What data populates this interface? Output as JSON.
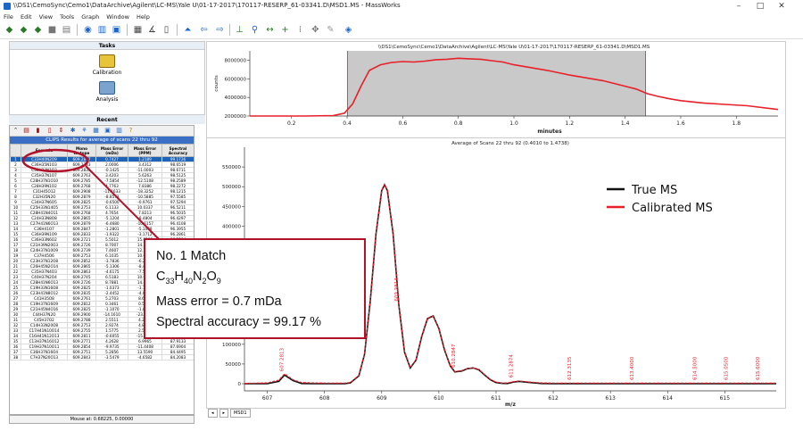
{
  "window": {
    "title": "\\\\DS1\\CemoSync\\Cemo1\\DataArchive\\Agilent\\LC-MS\\Yale U\\01-17-2017\\170117-RESERP_61-03341.D\\MSD1.MS - MassWorks",
    "min_glyph": "–",
    "max_glyph": "□",
    "close_glyph": "✕"
  },
  "menu": [
    "File",
    "Edit",
    "View",
    "Tools",
    "Graph",
    "Window",
    "Help"
  ],
  "tasks_panel": {
    "header": "Tasks",
    "calibration_label": "Calibration",
    "analysis_label": "Analysis",
    "recent_header": "Recent"
  },
  "results": {
    "header": "CLIPS Results for average of scans 22 thru 92",
    "columns": [
      "",
      "Formula",
      "Mono Isotope",
      "Mass Error (mDa)",
      "Mass Error (PPM)",
      "Spectral Accuracy"
    ],
    "rows": [
      [
        "1",
        "C33H40N2O9",
        "609.2807",
        "0.7427",
        "1.2189",
        "99.1726"
      ],
      [
        "2",
        "C36H35N1O3",
        "609.2733",
        "2.0006",
        "3.4312",
        "98.6519"
      ],
      [
        "3",
        "C30H33N1O3",
        "609.2835",
        "-0.1425",
        "-11.0003",
        "98.6711"
      ],
      [
        "4",
        "C35H37N1O7",
        "609.2763",
        "3.4203",
        "5.6263",
        "98.5125"
      ],
      [
        "5",
        "C28H37N1O10",
        "609.2785",
        "-7.5854",
        "-12.5108",
        "98.2589"
      ],
      [
        "6",
        "C28H39N1O2",
        "609.2768",
        "4.7763",
        "7.8386",
        "98.2272"
      ],
      [
        "7",
        "C31H45O12",
        "609.2908",
        "-11.1633",
        "-18.3252",
        "98.1215"
      ],
      [
        "8",
        "C32H35N2O",
        "609.2879",
        "-8.8573",
        "-10.5885",
        "97.5585"
      ],
      [
        "9",
        "C34H37N6O5",
        "609.2825",
        "-0.6500",
        "-0.9761",
        "97.5294"
      ],
      [
        "10",
        "C25H33N14O5",
        "609.2753",
        "6.1133",
        "10.0337",
        "96.5211"
      ],
      [
        "11",
        "C28H41N4O11",
        "609.2768",
        "4.7654",
        "7.8213",
        "96.5035"
      ],
      [
        "12",
        "C24H33N8O8",
        "609.2865",
        "-5.1204",
        "-8.4804",
        "96.4297"
      ],
      [
        "13",
        "C27H41N6O13",
        "609.2879",
        "-6.4680",
        "-10.6157",
        "96.4108"
      ],
      [
        "14",
        "C36H41O7",
        "609.2847",
        "-1.2801",
        "-5.1038",
        "96.3955"
      ],
      [
        "15",
        "C36H39N1O9",
        "609.2833",
        "-1.9322",
        "-3.1712",
        "96.2861"
      ],
      [
        "16",
        "C36H33N6O2",
        "609.2721",
        "5.5012",
        "15.0293",
        "96.2104"
      ],
      [
        "17",
        "C21H39N20O3",
        "609.2726",
        "8.7007",
        "14.2803",
        "96.1972"
      ],
      [
        "18",
        "C24H37N10O9",
        "609.2739",
        "7.4607",
        "12.2449",
        "96.1837"
      ],
      [
        "19",
        "C37H45O6",
        "609.2753",
        "6.1035",
        "10.0175",
        "96.1705"
      ],
      [
        "20",
        "C23H37N12O8",
        "609.2852",
        "-3.7836",
        "-6.2100",
        "96.1024"
      ],
      [
        "21",
        "C26H45N2O14",
        "609.2865",
        "-5.1306",
        "-8.4270",
        "96.0851"
      ],
      [
        "22",
        "C35H37N4O3",
        "609.2863",
        "-4.6175",
        "-7.5788",
        "96.0311"
      ],
      [
        "23",
        "C40H37N2O4",
        "609.2745",
        "6.5183",
        "10.6984",
        "95.9788"
      ],
      [
        "24",
        "C28H41N6O13",
        "609.2726",
        "8.7881",
        "14.4242",
        "95.8911"
      ],
      [
        "25",
        "C19H33N16O8",
        "609.2825",
        "-1.0373",
        "-1.7025",
        "95.8637"
      ],
      [
        "26",
        "C23H41N8O12",
        "609.2835",
        "-2.4452",
        "-4.0133",
        "95.8420"
      ],
      [
        "27",
        "C41H35O8",
        "609.2761",
        "5.2703",
        "8.6500",
        "95.7881"
      ],
      [
        "28",
        "C19H37N16O9",
        "609.2812",
        "0.3461",
        "0.5680",
        "95.7493"
      ],
      [
        "29",
        "C21H45N4O16",
        "609.2825",
        "-1.1070",
        "-1.8169",
        "95.6953"
      ],
      [
        "30",
        "C44H37N2O",
        "609.2900",
        "-14.1610",
        "-23.2419",
        "95.6112"
      ],
      [
        "31",
        "C45H37O2",
        "609.2788",
        "2.5511",
        "4.2661",
        "95.5434"
      ],
      [
        "32",
        "C14H33N20O8",
        "609.2753",
        "2.9274",
        "4.8015",
        "95.7697"
      ],
      [
        "33",
        "C17H41N10O14",
        "609.2755",
        "1.5775",
        "2.5891",
        "95.5242"
      ],
      [
        "34",
        "C16H41N12O13",
        "609.2811",
        "-0.6055",
        "-15.5483",
        "95.3587"
      ],
      [
        "35",
        "C13H37N16O12",
        "609.2771",
        "4.2628",
        "6.9965",
        "87.9133"
      ],
      [
        "36",
        "C19H37N10O11",
        "609.2854",
        "-9.9735",
        "-11.4408",
        "87.6904"
      ],
      [
        "37",
        "C36H37N16O4",
        "609.2751",
        "5.2856",
        "13.5590",
        "84.4495"
      ],
      [
        "38",
        "C7H37N20O13",
        "609.2843",
        "-3.5479",
        "-4.6582",
        "84.2083"
      ]
    ]
  },
  "status_text": "Mouse at: 0.68225, 0.00000",
  "callout": {
    "line1": "No. 1 Match",
    "formula": [
      [
        "C",
        "33"
      ],
      [
        "H",
        "40"
      ],
      [
        "N",
        "2"
      ],
      [
        "O",
        "9"
      ]
    ],
    "line3": "Mass error = 0.7 mDa",
    "line4": "Spectral accuracy = 99.17 %"
  },
  "tab_label": "MSD1",
  "chart_data": [
    {
      "type": "area",
      "title": "\\\\DS1\\CemoSync\\Cemo1\\DataArchive\\Agilent\\LC-MS\\Yale U\\01-17-2017\\170117-RESERP_61-03341.D\\MSD1.MS",
      "xlabel": "minutes",
      "ylabel": "counts",
      "xlim": [
        0.05,
        1.95
      ],
      "ylim": [
        2000000,
        9000000
      ],
      "x_ticks": [
        "0.2",
        "0.4",
        "0.6",
        "0.8",
        "1.0",
        "1.2",
        "1.4",
        "1.6",
        "1.8"
      ],
      "y_ticks": [
        "2000000",
        "4000000",
        "6000000",
        "8000000"
      ],
      "shaded_range": [
        0.401,
        1.4738
      ],
      "series": [
        {
          "color": "#e8202a",
          "x": [
            0.05,
            0.25,
            0.35,
            0.39,
            0.42,
            0.45,
            0.48,
            0.52,
            0.56,
            0.6,
            0.64,
            0.68,
            0.72,
            0.76,
            0.8,
            0.84,
            0.88,
            0.92,
            0.96,
            1.0,
            1.04,
            1.08,
            1.12,
            1.16,
            1.2,
            1.24,
            1.28,
            1.32,
            1.36,
            1.4,
            1.44,
            1.48,
            1.52,
            1.56,
            1.6,
            1.68,
            1.76,
            1.84,
            1.95
          ],
          "y": [
            2000000,
            2000000,
            2050000,
            2300000,
            3300000,
            5200000,
            6900000,
            7500000,
            7750000,
            7850000,
            7800000,
            7900000,
            8050000,
            8100000,
            8200000,
            8150000,
            8100000,
            7950000,
            7800000,
            7500000,
            7300000,
            7100000,
            6900000,
            6650000,
            6400000,
            6200000,
            6000000,
            5800000,
            5500000,
            5200000,
            4900000,
            4400000,
            4100000,
            3850000,
            3650000,
            3400000,
            3250000,
            3100000,
            2700000
          ]
        }
      ]
    },
    {
      "type": "line",
      "title": "Average of Scans 22 thru 92 (0.4010 to 1.4738)",
      "xlabel": "m/z",
      "ylim": [
        -10000,
        600000
      ],
      "xlim": [
        606.6,
        615.9
      ],
      "x_ticks": [
        "607",
        "608",
        "609",
        "610",
        "611",
        "612",
        "613",
        "614",
        "615"
      ],
      "y_ticks": [
        "0",
        "50000",
        "100000",
        "150000",
        "200000",
        "250000",
        "300000",
        "350000",
        "400000",
        "450000",
        "500000",
        "550000"
      ],
      "legend_position": "top-right",
      "series": [
        {
          "name": "True MS",
          "color": "#111111",
          "x": [
            606.6,
            607.0,
            607.2,
            607.3,
            607.45,
            607.6,
            607.8,
            608.0,
            608.2,
            608.35,
            608.45,
            608.6,
            608.7,
            608.8,
            608.9,
            609.0,
            609.05,
            609.1,
            609.2,
            609.3,
            609.4,
            609.5,
            609.6,
            609.7,
            609.8,
            609.9,
            610.0,
            610.1,
            610.2,
            610.28,
            610.4,
            610.5,
            610.6,
            610.7,
            610.8,
            610.9,
            611.0,
            611.1,
            611.2,
            611.3,
            611.4,
            611.6,
            611.8,
            612.0,
            612.3,
            612.6,
            613.0,
            613.5,
            614.0,
            614.5,
            615.0,
            615.9
          ],
          "y": [
            0,
            0,
            6000,
            22000,
            8000,
            500,
            0,
            0,
            0,
            0,
            2000,
            20000,
            75000,
            210000,
            380000,
            490000,
            505000,
            490000,
            380000,
            200000,
            80000,
            40000,
            60000,
            120000,
            165000,
            172000,
            140000,
            85000,
            45000,
            30000,
            32000,
            38000,
            40000,
            35000,
            22000,
            10000,
            3000,
            800,
            500,
            4000,
            6000,
            3000,
            500,
            0,
            200,
            0,
            0,
            0,
            0,
            0,
            0,
            0
          ]
        },
        {
          "name": "Calibrated MS",
          "color": "#e8202a",
          "x": [
            606.6,
            607.0,
            607.2,
            607.3,
            607.45,
            607.6,
            607.8,
            608.0,
            608.2,
            608.35,
            608.45,
            608.6,
            608.7,
            608.8,
            608.9,
            609.0,
            609.05,
            609.1,
            609.2,
            609.3,
            609.4,
            609.5,
            609.6,
            609.7,
            609.8,
            609.9,
            610.0,
            610.1,
            610.2,
            610.28,
            610.4,
            610.5,
            610.6,
            610.7,
            610.8,
            610.9,
            611.0,
            611.1,
            611.2,
            611.3,
            611.4,
            611.6,
            611.8,
            612.0,
            612.3,
            612.6,
            613.0,
            613.5,
            614.0,
            614.5,
            615.0,
            615.9
          ],
          "y": [
            1000,
            2000,
            9000,
            25000,
            10000,
            3000,
            2000,
            1500,
            1500,
            1500,
            3000,
            21000,
            76000,
            211000,
            381000,
            491000,
            505000,
            491000,
            381000,
            201000,
            81000,
            41000,
            61000,
            121000,
            166000,
            172000,
            141000,
            86000,
            46000,
            31000,
            33000,
            39000,
            40000,
            36000,
            23000,
            11000,
            4000,
            2000,
            2000,
            5000,
            7000,
            4000,
            2000,
            1500,
            1500,
            1500,
            1500,
            1500,
            1500,
            1500,
            1500,
            1500
          ]
        }
      ],
      "peak_labels": [
        {
          "x": 607.2813,
          "label": "607.2813"
        },
        {
          "x": 609.2814,
          "label": "609.2814"
        },
        {
          "x": 610.2847,
          "label": "610.2847"
        },
        {
          "x": 611.2874,
          "label": "611.2874"
        },
        {
          "x": 612.3135,
          "label": "612.3135"
        },
        {
          "x": 613.4,
          "label": "613.4000"
        },
        {
          "x": 614.5,
          "label": "614.5000"
        },
        {
          "x": 615.05,
          "label": "615.0500"
        },
        {
          "x": 615.6,
          "label": "615.6000"
        }
      ]
    }
  ]
}
